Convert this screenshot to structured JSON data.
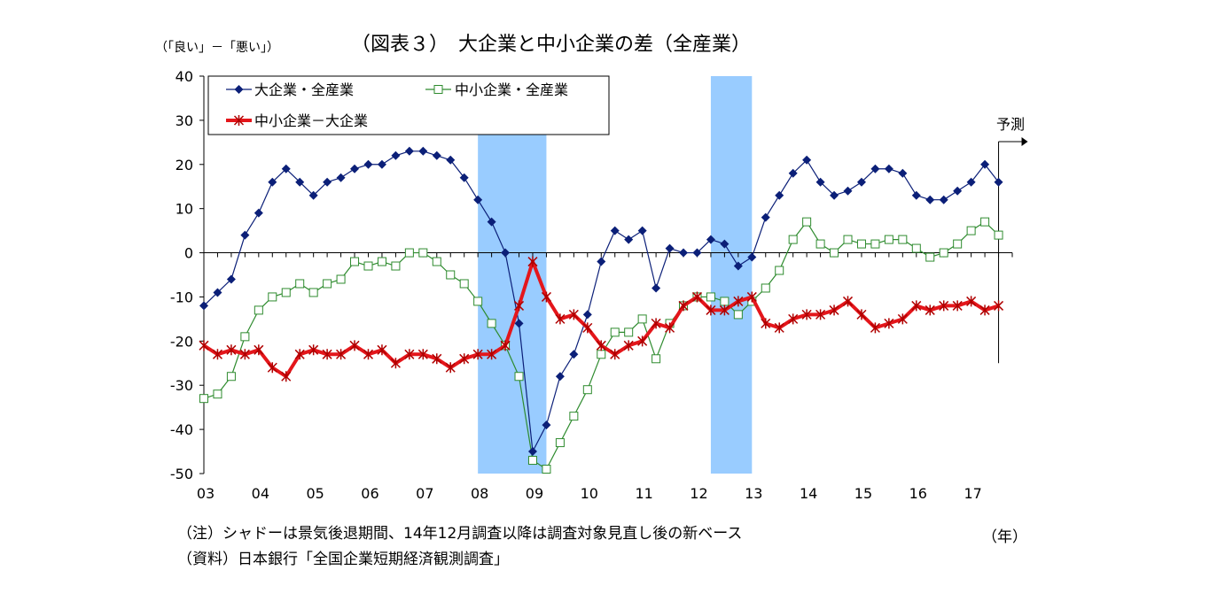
{
  "chart_data": {
    "type": "line",
    "title": "（図表３）　大企業と中小企業の差（全産業）",
    "ylabel": "（「良い」－「悪い」）",
    "xlabel": "（年）",
    "ylim": [
      -50,
      40
    ],
    "yticks": [
      "40",
      "30",
      "20",
      "10",
      "0",
      "-10",
      "-20",
      "-30",
      "-40",
      "-50"
    ],
    "ytick_values": [
      40,
      30,
      20,
      10,
      0,
      -10,
      -20,
      -30,
      -40,
      -50
    ],
    "xtick_labels": [
      "03",
      "04",
      "05",
      "06",
      "07",
      "08",
      "09",
      "10",
      "11",
      "12",
      "13",
      "14",
      "15",
      "16",
      "17"
    ],
    "x_start_year": 2003,
    "x_end_year": 2017.75,
    "forecast_label": "予測",
    "forecast_at": 2017.5,
    "recessions": [
      [
        2008.0,
        2009.25
      ],
      [
        2012.25,
        2013.0
      ]
    ],
    "series": [
      {
        "name": "大企業・全産業",
        "color": "#0b1f78",
        "marker": "diamond",
        "values": [
          -12,
          -9,
          -6,
          4,
          9,
          16,
          19,
          16,
          13,
          16,
          17,
          19,
          20,
          20,
          22,
          23,
          23,
          22,
          21,
          17,
          12,
          7,
          0,
          -16,
          -45,
          -39,
          -28,
          -23,
          -14,
          -2,
          5,
          3,
          5,
          -8,
          1,
          0,
          0,
          3,
          2,
          -3,
          -1,
          8,
          13,
          18,
          21,
          16,
          13,
          14,
          16,
          19,
          19,
          18,
          13,
          12,
          12,
          14,
          16,
          20,
          16
        ]
      },
      {
        "name": "中小企業・全産業",
        "color": "#2e8b2e",
        "marker": "square-open",
        "values": [
          -33,
          -32,
          -28,
          -19,
          -13,
          -10,
          -9,
          -7,
          -9,
          -7,
          -6,
          -2,
          -3,
          -2,
          -3,
          0,
          0,
          -2,
          -5,
          -7,
          -11,
          -16,
          -21,
          -28,
          -47,
          -49,
          -43,
          -37,
          -31,
          -23,
          -18,
          -18,
          -15,
          -24,
          -16,
          -12,
          -10,
          -10,
          -11,
          -14,
          -11,
          -8,
          -4,
          3,
          7,
          2,
          0,
          3,
          2,
          2,
          3,
          3,
          1,
          -1,
          0,
          2,
          5,
          7,
          4
        ]
      },
      {
        "name": "中小企業－大企業",
        "color": "#e4161b",
        "marker": "star",
        "values": [
          -21,
          -23,
          -22,
          -23,
          -22,
          -26,
          -28,
          -23,
          -22,
          -23,
          -23,
          -21,
          -23,
          -22,
          -25,
          -23,
          -23,
          -24,
          -26,
          -24,
          -23,
          -23,
          -21,
          -12,
          -2,
          -10,
          -15,
          -14,
          -17,
          -21,
          -23,
          -21,
          -20,
          -16,
          -17,
          -12,
          -10,
          -13,
          -13,
          -11,
          -10,
          -16,
          -17,
          -15,
          -14,
          -14,
          -13,
          -11,
          -14,
          -17,
          -16,
          -15,
          -12,
          -13,
          -12,
          -12,
          -11,
          -13,
          -12
        ]
      }
    ]
  },
  "notes": [
    "（注）シャドーは景気後退期間、14年12月調査以降は調査対象見直し後の新ベース",
    "（資料）日本銀行「全国企業短期経済観測調査」"
  ]
}
